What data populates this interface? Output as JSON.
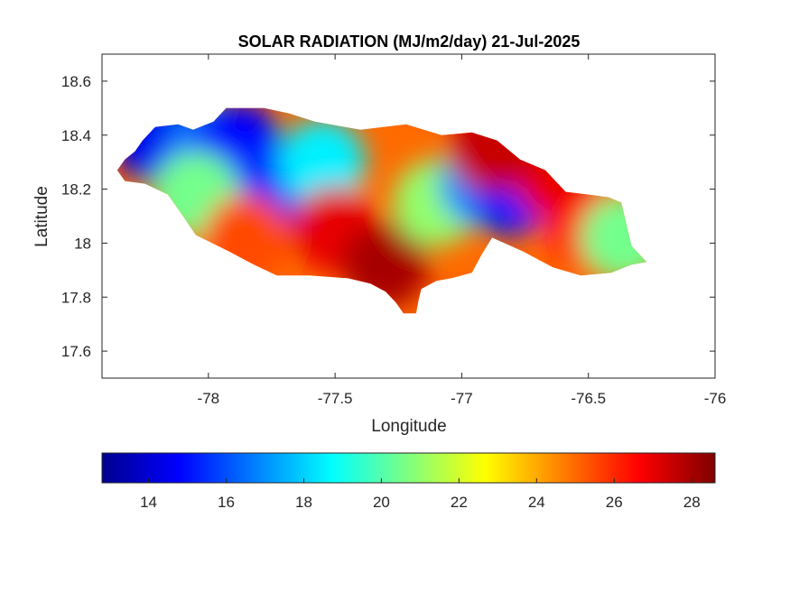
{
  "chart_data": {
    "type": "heatmap",
    "title": "SOLAR RADIATION (MJ/m2/day) 21-Jul-2025",
    "xlabel": "Longitude",
    "ylabel": "Latitude",
    "xlim": [
      -78.42,
      -76.0
    ],
    "ylim": [
      17.5,
      18.7
    ],
    "xticks": [
      -78,
      -77.5,
      -77,
      -76.5,
      -76
    ],
    "xtick_labels": [
      "-78",
      "-77.5",
      "-77",
      "-76.5",
      "-76"
    ],
    "yticks": [
      17.6,
      17.8,
      18,
      18.2,
      18.4,
      18.6
    ],
    "ytick_labels": [
      "17.6",
      "17.8",
      "18",
      "18.2",
      "18.4",
      "18.6"
    ],
    "grid": false,
    "colormap": "jet",
    "colorbar": {
      "orientation": "horizontal",
      "location": "below",
      "range": [
        12.8,
        28.6
      ],
      "ticks": [
        14,
        16,
        18,
        20,
        22,
        24,
        26,
        28
      ],
      "tick_labels": [
        "14",
        "16",
        "18",
        "20",
        "22",
        "24",
        "26",
        "28"
      ]
    },
    "region_outline": [
      [
        -78.36,
        18.27
      ],
      [
        -78.33,
        18.31
      ],
      [
        -78.29,
        18.34
      ],
      [
        -78.26,
        18.38
      ],
      [
        -78.21,
        18.43
      ],
      [
        -78.12,
        18.44
      ],
      [
        -78.06,
        18.42
      ],
      [
        -77.98,
        18.45
      ],
      [
        -77.93,
        18.5
      ],
      [
        -77.78,
        18.5
      ],
      [
        -77.68,
        18.48
      ],
      [
        -77.58,
        18.45
      ],
      [
        -77.4,
        18.42
      ],
      [
        -77.22,
        18.44
      ],
      [
        -77.08,
        18.4
      ],
      [
        -76.96,
        18.41
      ],
      [
        -76.86,
        18.38
      ],
      [
        -76.77,
        18.31
      ],
      [
        -76.67,
        18.27
      ],
      [
        -76.59,
        18.19
      ],
      [
        -76.5,
        18.18
      ],
      [
        -76.42,
        18.17
      ],
      [
        -76.37,
        18.15
      ],
      [
        -76.35,
        18.07
      ],
      [
        -76.33,
        17.99
      ],
      [
        -76.27,
        17.93
      ],
      [
        -76.33,
        17.92
      ],
      [
        -76.41,
        17.89
      ],
      [
        -76.53,
        17.88
      ],
      [
        -76.64,
        17.91
      ],
      [
        -76.76,
        17.97
      ],
      [
        -76.88,
        18.02
      ],
      [
        -76.92,
        17.96
      ],
      [
        -76.96,
        17.89
      ],
      [
        -77.0,
        17.88
      ],
      [
        -77.04,
        17.87
      ],
      [
        -77.1,
        17.86
      ],
      [
        -77.16,
        17.83
      ],
      [
        -77.17,
        17.79
      ],
      [
        -77.18,
        17.74
      ],
      [
        -77.23,
        17.74
      ],
      [
        -77.26,
        17.78
      ],
      [
        -77.3,
        17.82
      ],
      [
        -77.36,
        17.85
      ],
      [
        -77.45,
        17.87
      ],
      [
        -77.6,
        17.88
      ],
      [
        -77.73,
        17.88
      ],
      [
        -77.82,
        17.92
      ],
      [
        -77.92,
        17.97
      ],
      [
        -78.05,
        18.03
      ],
      [
        -78.1,
        18.1
      ],
      [
        -78.16,
        18.18
      ],
      [
        -78.25,
        18.22
      ],
      [
        -78.33,
        18.23
      ]
    ],
    "field_centers": [
      {
        "lon": -78.2,
        "lat": 18.38,
        "value": 14.5
      },
      {
        "lon": -78.0,
        "lat": 18.36,
        "value": 16.5
      },
      {
        "lon": -77.88,
        "lat": 18.36,
        "value": 14.8
      },
      {
        "lon": -77.78,
        "lat": 18.2,
        "value": 15.5
      },
      {
        "lon": -78.05,
        "lat": 18.18,
        "value": 20.5
      },
      {
        "lon": -77.85,
        "lat": 18.02,
        "value": 25.5
      },
      {
        "lon": -77.55,
        "lat": 18.3,
        "value": 18.5
      },
      {
        "lon": -77.5,
        "lat": 18.05,
        "value": 27.0
      },
      {
        "lon": -77.3,
        "lat": 17.92,
        "value": 28.0
      },
      {
        "lon": -77.1,
        "lat": 18.15,
        "value": 21.0
      },
      {
        "lon": -76.92,
        "lat": 18.22,
        "value": 17.0
      },
      {
        "lon": -76.8,
        "lat": 18.19,
        "value": 15.2
      },
      {
        "lon": -76.62,
        "lat": 18.24,
        "value": 27.0
      },
      {
        "lon": -76.48,
        "lat": 18.05,
        "value": 26.5
      },
      {
        "lon": -76.36,
        "lat": 18.02,
        "value": 20.5
      },
      {
        "lon": -76.88,
        "lat": 18.35,
        "value": 27.5
      }
    ]
  }
}
